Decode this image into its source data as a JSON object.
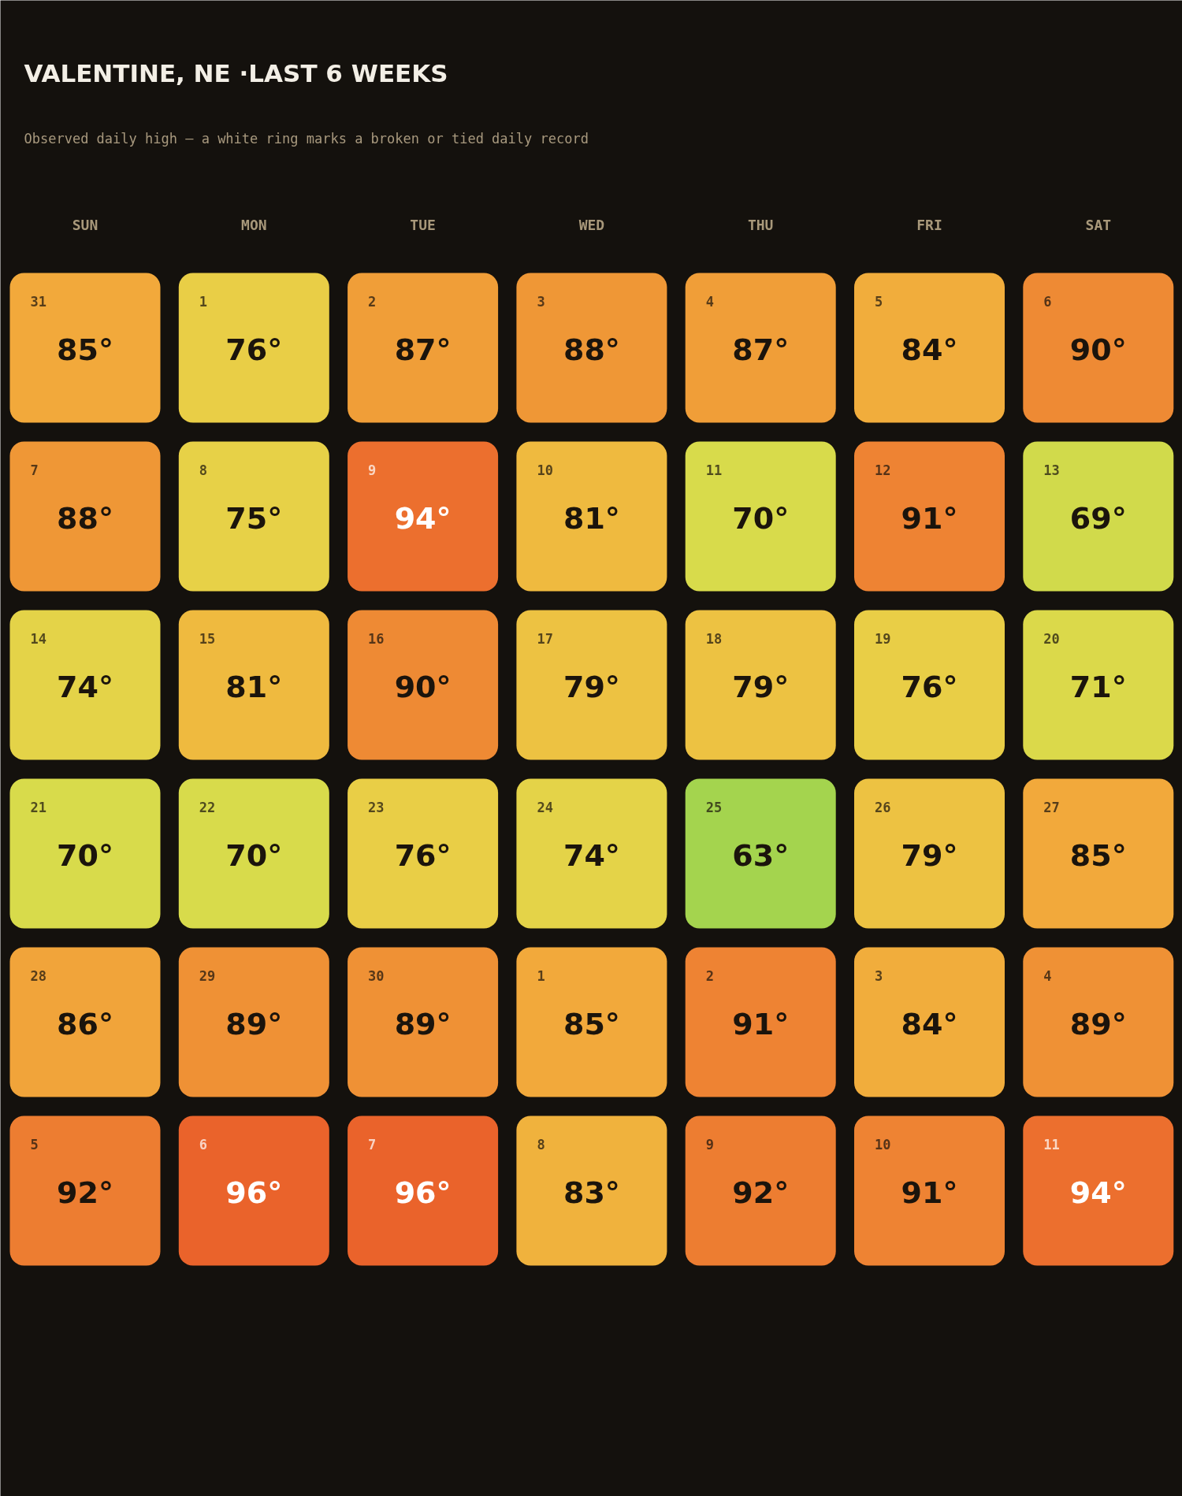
{
  "chart_data": {
    "type": "heatmap",
    "title": "VALENTINE, NE ·LAST 6 WEEKS",
    "subtitle": "Observed daily high — a white ring marks a broken or tied daily record",
    "categories": [
      "SUN",
      "MON",
      "TUE",
      "WED",
      "THU",
      "FRI",
      "SAT"
    ],
    "y_categories": [
      null,
      null,
      null,
      null,
      null,
      null
    ],
    "cells": [
      [
        85,
        76,
        87,
        88,
        87,
        84,
        90
      ],
      [
        88,
        75,
        94,
        81,
        70,
        91,
        69
      ],
      [
        74,
        81,
        90,
        79,
        79,
        76,
        71
      ],
      [
        70,
        70,
        76,
        74,
        63,
        79,
        85
      ],
      [
        86,
        89,
        89,
        85,
        91,
        84,
        89
      ],
      [
        92,
        96,
        96,
        83,
        92,
        91,
        94
      ]
    ],
    "cell_labels": [
      [
        "85°",
        "76°",
        "87°",
        "88°",
        "87°",
        "84°",
        "90°"
      ],
      [
        "88°",
        "75°",
        "94°",
        "81°",
        "70°",
        "91°",
        "69°"
      ],
      [
        "74°",
        "81°",
        "90°",
        "79°",
        "79°",
        "76°",
        "71°"
      ],
      [
        "70°",
        "70°",
        "76°",
        "74°",
        "63°",
        "79°",
        "85°"
      ],
      [
        "86°",
        "89°",
        "89°",
        "85°",
        "91°",
        "84°",
        "89°"
      ],
      [
        "92°",
        "96°",
        "96°",
        "83°",
        "92°",
        "91°",
        "94°"
      ]
    ],
    "annotations": [
      "31",
      "1",
      "2",
      "3",
      "4",
      "5",
      "6",
      "7",
      "8",
      "9",
      "10",
      "11",
      "12",
      "13",
      "14",
      "15",
      "16",
      "17",
      "18",
      "19",
      "20",
      "21",
      "22",
      "23",
      "24",
      "25",
      "26",
      "27",
      "28",
      "29",
      "30",
      "1",
      "2",
      "3",
      "4",
      "5",
      "6",
      "7",
      "8",
      "9",
      "10",
      "11"
    ]
  }
}
